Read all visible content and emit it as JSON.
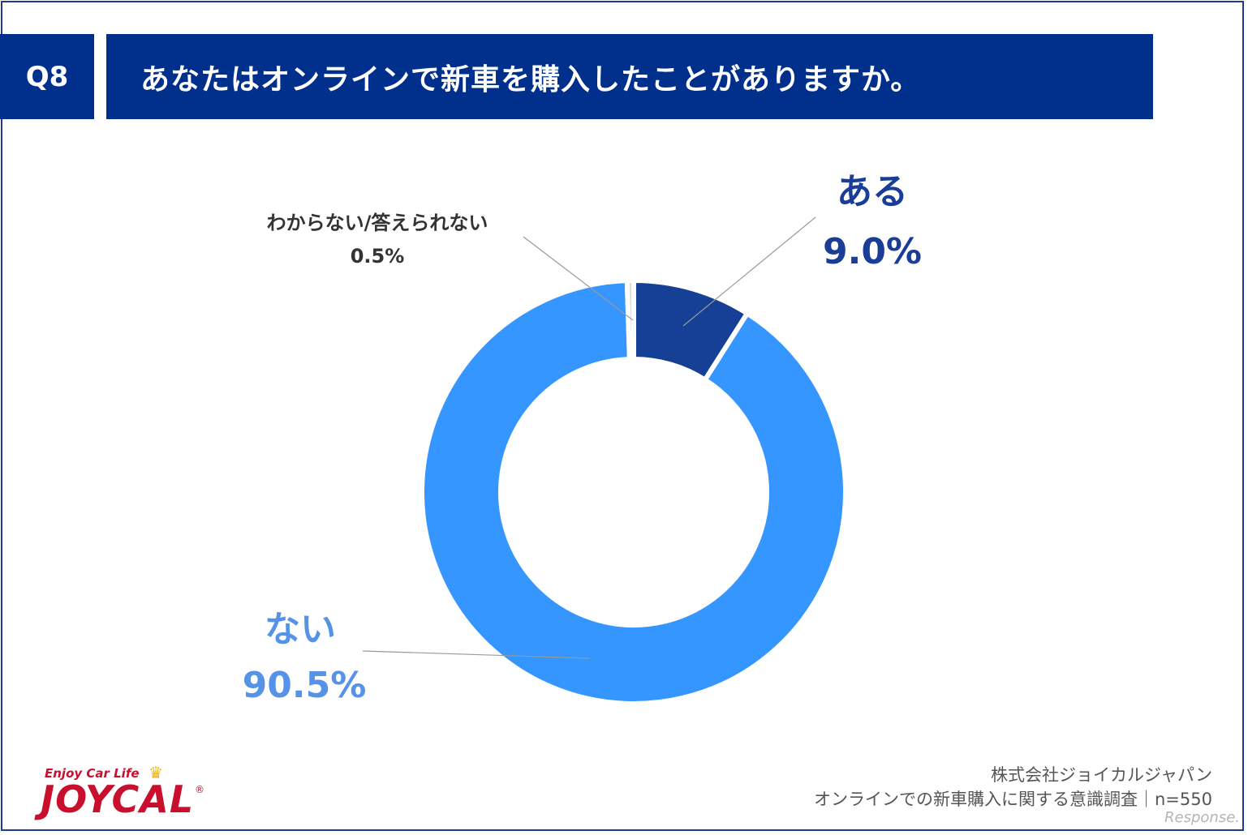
{
  "header": {
    "question_number": "Q8",
    "question_text": "あなたはオンラインで新車を購入したことがありますか。"
  },
  "chart_data": {
    "type": "pie",
    "donut": true,
    "start_angle": "top",
    "direction": "clockwise",
    "slices": [
      {
        "label": "ある",
        "value": 9.0,
        "display": "9.0%",
        "color": "#163f96"
      },
      {
        "label": "ない",
        "value": 90.5,
        "display": "90.5%",
        "color": "#3696ff"
      },
      {
        "label": "わからない/答えられない",
        "value": 0.5,
        "display": "0.5%",
        "color": "#d9d9d9"
      }
    ]
  },
  "footer": {
    "source_line1": "株式会社ジョイカルジャパン",
    "source_line2": "オンラインでの新車購入に関する意識調査｜n=550",
    "logo_tagline": "Enjoy Car Life",
    "logo_text": "JOYCAL",
    "watermark": "Response."
  },
  "colors": {
    "header_bg": "#00308c",
    "border": "#1f3b8c"
  }
}
